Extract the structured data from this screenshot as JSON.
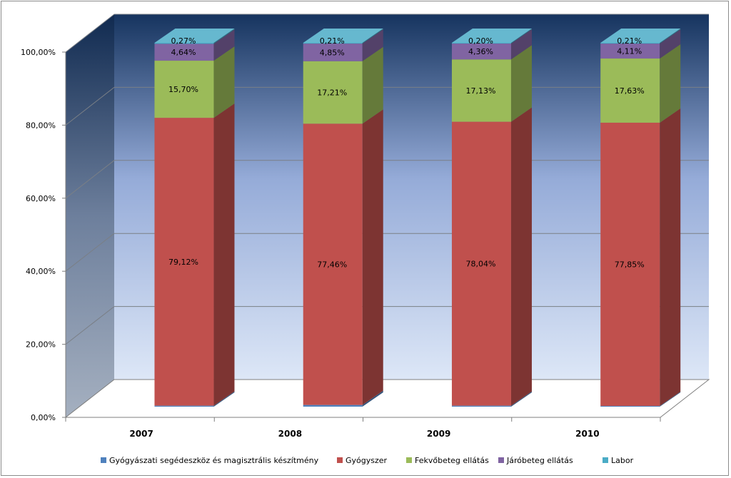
{
  "chart_data": {
    "type": "bar",
    "stacked": "percent",
    "three_d": true,
    "categories": [
      "2007",
      "2008",
      "2009",
      "2010"
    ],
    "ylim": [
      0,
      100
    ],
    "ytick_values": [
      0,
      20,
      40,
      60,
      80,
      100
    ],
    "ytick_labels": [
      "0,00%",
      "20,00%",
      "40,00%",
      "60,00%",
      "80,00%",
      "100,00%"
    ],
    "series": [
      {
        "name": "Gyógyászati segédeszköz és magisztrális készítmény",
        "color": "#4f81bd",
        "values": [
          0.27,
          0.47,
          0.27,
          0.2
        ],
        "labels": [
          "",
          "",
          "",
          ""
        ]
      },
      {
        "name": "Gyógyszer",
        "color": "#c0504d",
        "values": [
          79.12,
          77.46,
          78.04,
          77.85
        ],
        "labels": [
          "79,12%",
          "77,46%",
          "78,04%",
          "77,85%"
        ]
      },
      {
        "name": "Fekvőbeteg ellátás",
        "color": "#9bbb59",
        "values": [
          15.7,
          17.21,
          17.13,
          17.63
        ],
        "labels": [
          "15,70%",
          "17,21%",
          "17,13%",
          "17,63%"
        ]
      },
      {
        "name": "Járóbeteg ellátás",
        "color": "#8064a2",
        "values": [
          4.64,
          4.85,
          4.36,
          4.11
        ],
        "labels": [
          "4,64%",
          "4,85%",
          "4,36%",
          "4,11%"
        ]
      },
      {
        "name": "Labor",
        "color": "#4bacc6",
        "values": [
          0.27,
          0.21,
          0.2,
          0.21
        ],
        "labels": [
          "0,27%",
          "0,21%",
          "0,20%",
          "0,21%"
        ]
      }
    ],
    "grid": true,
    "legend": "bottom"
  }
}
